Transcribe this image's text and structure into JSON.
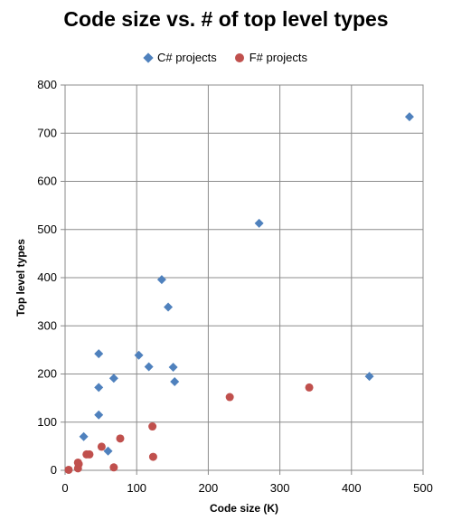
{
  "chart_data": {
    "type": "scatter",
    "title": "Code size vs. # of top level types",
    "xlabel": "Code size (K)",
    "ylabel": "Top level types",
    "xlim": [
      0,
      500
    ],
    "ylim": [
      0,
      800
    ],
    "xticks": [
      0,
      100,
      200,
      300,
      400,
      500
    ],
    "yticks": [
      0,
      100,
      200,
      300,
      400,
      500,
      600,
      700,
      800
    ],
    "grid": true,
    "legend_position": "top",
    "series": [
      {
        "name": "C# projects",
        "marker": "diamond",
        "color": "#4f81bd",
        "points": [
          {
            "x": 26,
            "y": 70
          },
          {
            "x": 47,
            "y": 115
          },
          {
            "x": 47,
            "y": 172
          },
          {
            "x": 47,
            "y": 242
          },
          {
            "x": 60,
            "y": 40
          },
          {
            "x": 68,
            "y": 191
          },
          {
            "x": 103,
            "y": 239
          },
          {
            "x": 117,
            "y": 215
          },
          {
            "x": 135,
            "y": 396
          },
          {
            "x": 144,
            "y": 339
          },
          {
            "x": 151,
            "y": 214
          },
          {
            "x": 153,
            "y": 184
          },
          {
            "x": 271,
            "y": 513
          },
          {
            "x": 425,
            "y": 195
          },
          {
            "x": 481,
            "y": 734
          }
        ]
      },
      {
        "name": "F# projects",
        "marker": "circle",
        "color": "#c0504d",
        "points": [
          {
            "x": 5,
            "y": 1
          },
          {
            "x": 18,
            "y": 4
          },
          {
            "x": 18,
            "y": 16
          },
          {
            "x": 19,
            "y": 13
          },
          {
            "x": 30,
            "y": 33
          },
          {
            "x": 34,
            "y": 33
          },
          {
            "x": 51,
            "y": 49
          },
          {
            "x": 68,
            "y": 6
          },
          {
            "x": 77,
            "y": 66
          },
          {
            "x": 122,
            "y": 91
          },
          {
            "x": 123,
            "y": 28
          },
          {
            "x": 230,
            "y": 152
          },
          {
            "x": 341,
            "y": 172
          }
        ]
      }
    ]
  }
}
